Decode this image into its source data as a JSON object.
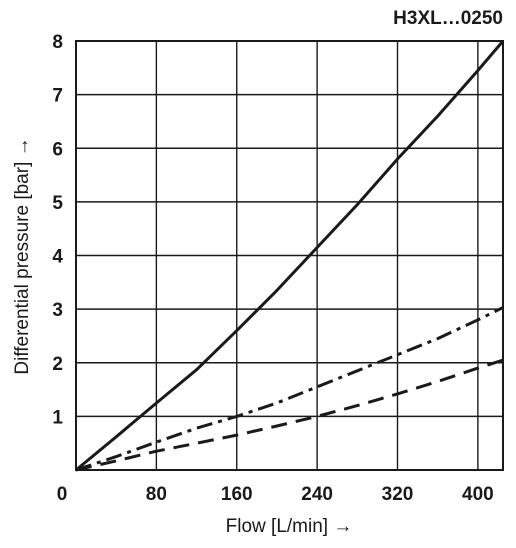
{
  "chart_data": {
    "type": "line",
    "title": "H3XL…0250",
    "xlabel": "Flow [L/min] →",
    "ylabel": "Differential pressure [bar] →",
    "xlim": [
      0,
      425
    ],
    "ylim": [
      0,
      8
    ],
    "x_ticks": [
      0,
      80,
      160,
      240,
      320,
      400
    ],
    "y_ticks": [
      1,
      2,
      3,
      4,
      5,
      6,
      7,
      8
    ],
    "grid": true,
    "series": [
      {
        "style": "solid",
        "color": "#1a1a1a",
        "x": [
          0,
          40,
          80,
          120,
          160,
          200,
          240,
          280,
          320,
          360,
          400,
          425
        ],
        "y": [
          0,
          0.62,
          1.25,
          1.87,
          2.6,
          3.35,
          4.15,
          4.95,
          5.8,
          6.6,
          7.45,
          8.0
        ]
      },
      {
        "style": "dashdot",
        "color": "#1a1a1a",
        "x": [
          0,
          40,
          80,
          120,
          160,
          200,
          240,
          280,
          320,
          360,
          400,
          425
        ],
        "y": [
          0,
          0.25,
          0.52,
          0.78,
          1.0,
          1.25,
          1.55,
          1.85,
          2.15,
          2.45,
          2.8,
          3.03
        ]
      },
      {
        "style": "dashed",
        "color": "#1a1a1a",
        "x": [
          0,
          40,
          80,
          120,
          160,
          200,
          240,
          280,
          320,
          360,
          400,
          425
        ],
        "y": [
          0,
          0.17,
          0.35,
          0.5,
          0.65,
          0.82,
          1.0,
          1.2,
          1.42,
          1.65,
          1.9,
          2.05
        ]
      }
    ]
  }
}
